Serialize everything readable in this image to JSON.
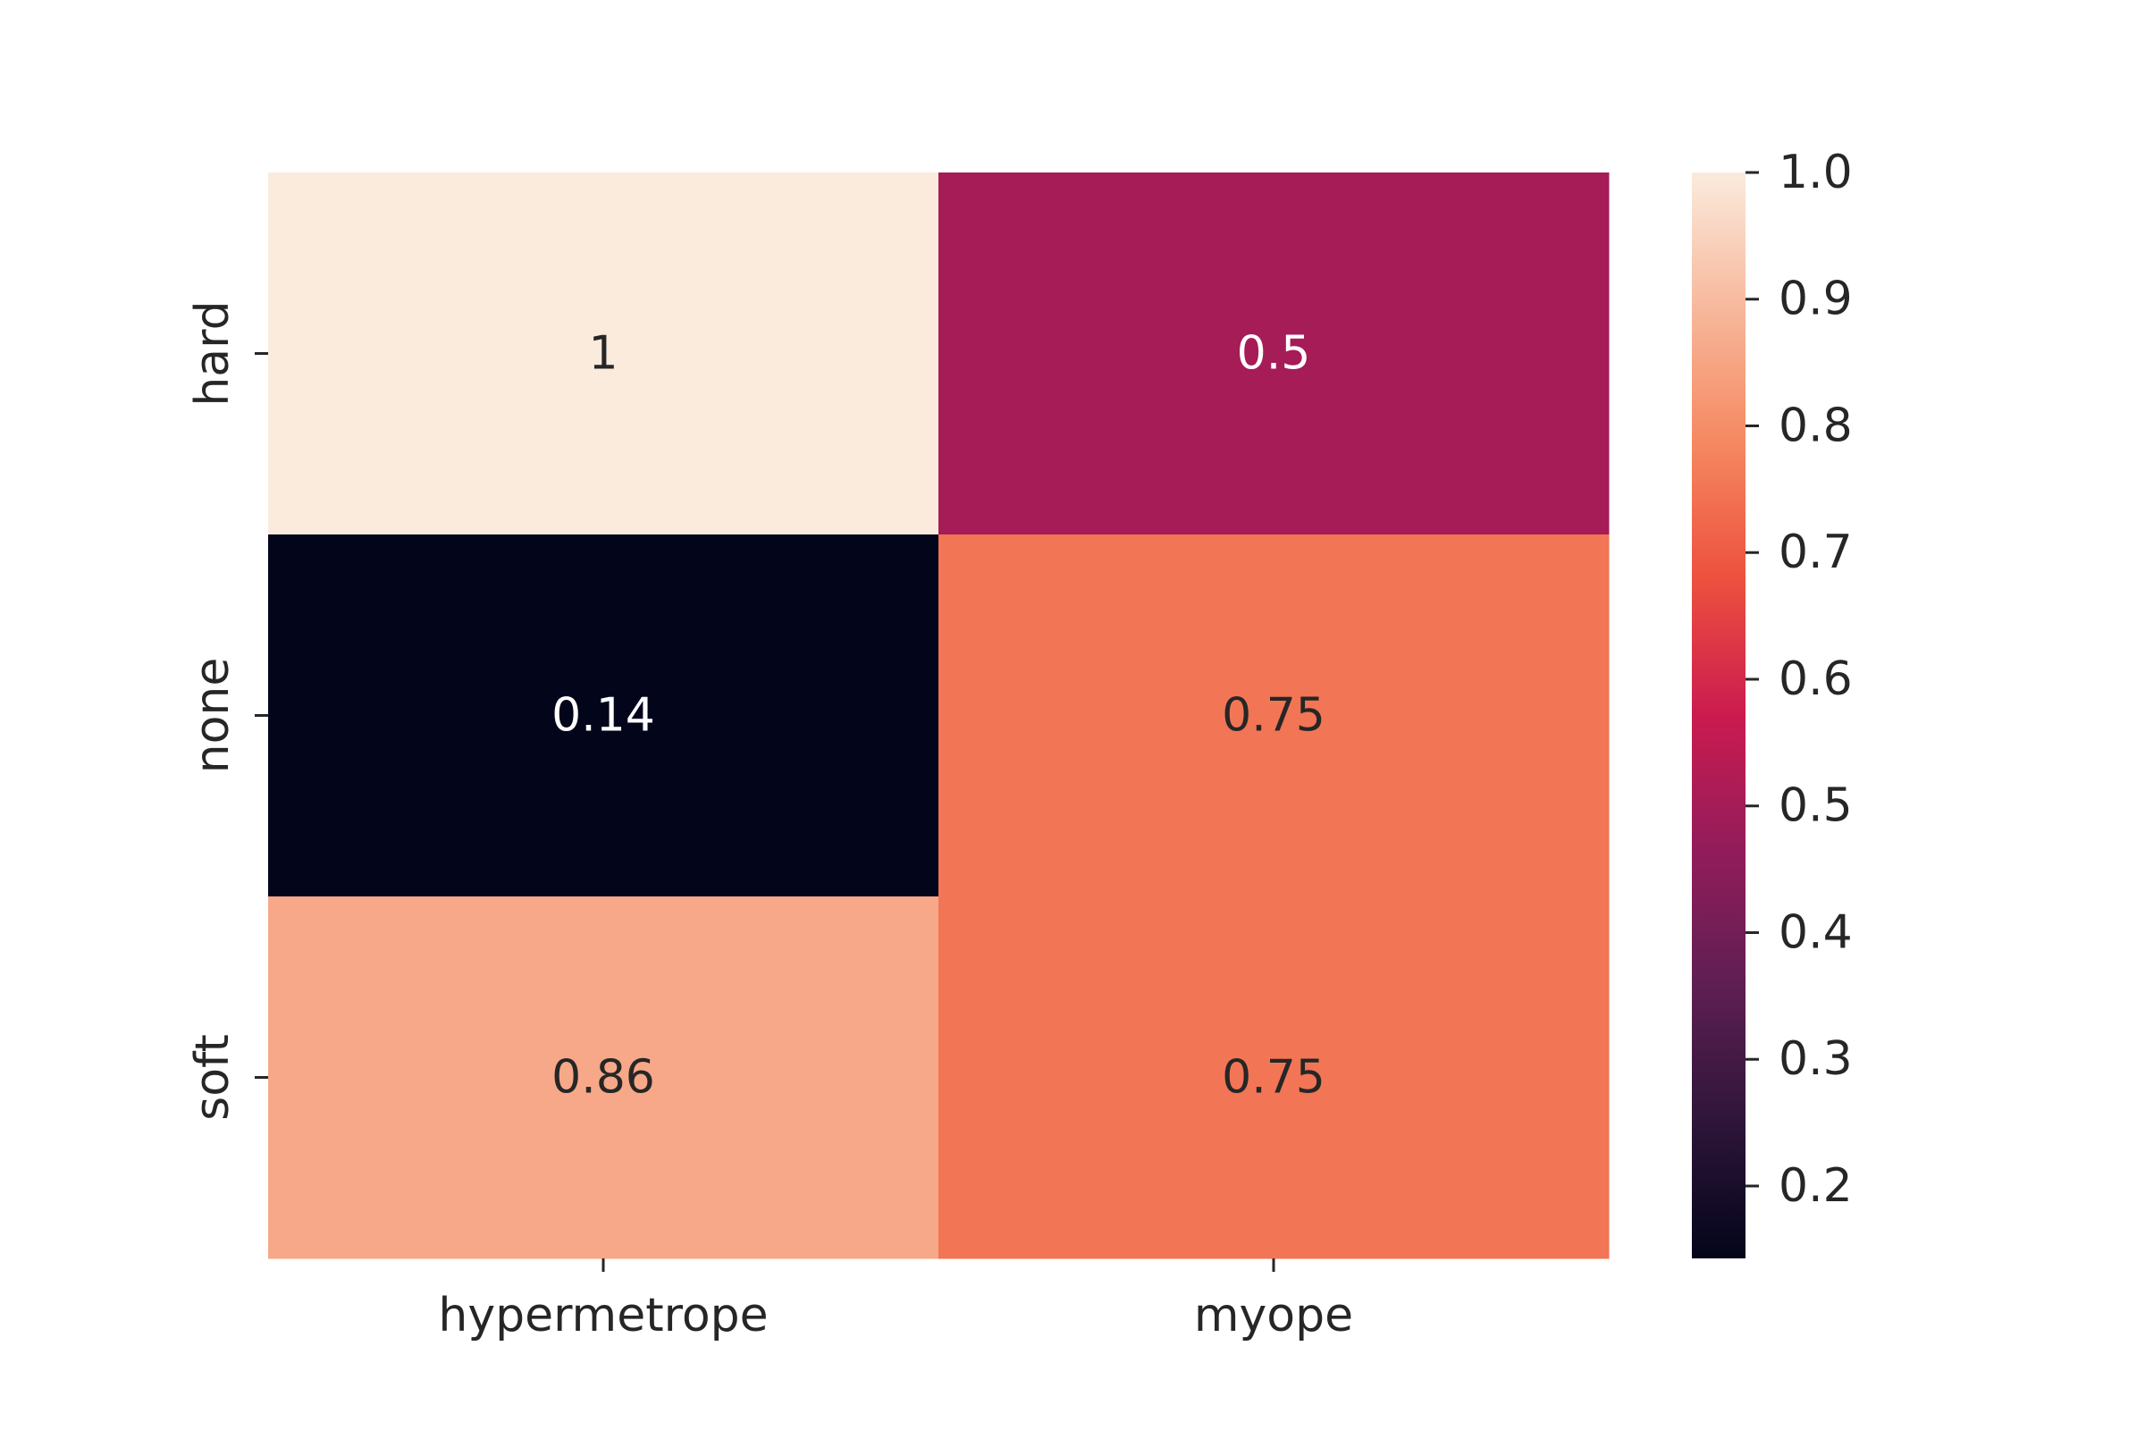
{
  "chart_data": {
    "type": "heatmap",
    "title": "",
    "xlabel": "",
    "ylabel": "",
    "x_categories": [
      "hypermetrope",
      "myope"
    ],
    "y_categories": [
      "hard",
      "none",
      "soft"
    ],
    "values": [
      [
        1.0,
        0.5
      ],
      [
        0.142857,
        0.75
      ],
      [
        0.857143,
        0.75
      ]
    ],
    "annotations": [
      [
        "1",
        "0.5"
      ],
      [
        "0.14",
        "0.75"
      ],
      [
        "0.86",
        "0.75"
      ]
    ],
    "colorbar": {
      "min": 0.142857,
      "max": 1.0,
      "ticks": [
        0.2,
        0.3,
        0.4,
        0.5,
        0.6,
        0.7,
        0.8,
        0.9,
        1.0
      ],
      "tick_labels": [
        "0.2",
        "0.3",
        "0.4",
        "0.5",
        "0.6",
        "0.7",
        "0.8",
        "0.9",
        "1.0"
      ]
    },
    "colormap": "rocket",
    "colormap_stops": [
      [
        0.0,
        "#03051a"
      ],
      [
        0.125,
        "#2e1539"
      ],
      [
        0.25,
        "#5e1f52"
      ],
      [
        0.375,
        "#921c5b"
      ],
      [
        0.5,
        "#cb1b4f"
      ],
      [
        0.625,
        "#ed503e"
      ],
      [
        0.75,
        "#f58860"
      ],
      [
        0.875,
        "#f7b89c"
      ],
      [
        1.0,
        "#faebdd"
      ]
    ],
    "grid": false,
    "legend": "colorbar-right"
  }
}
